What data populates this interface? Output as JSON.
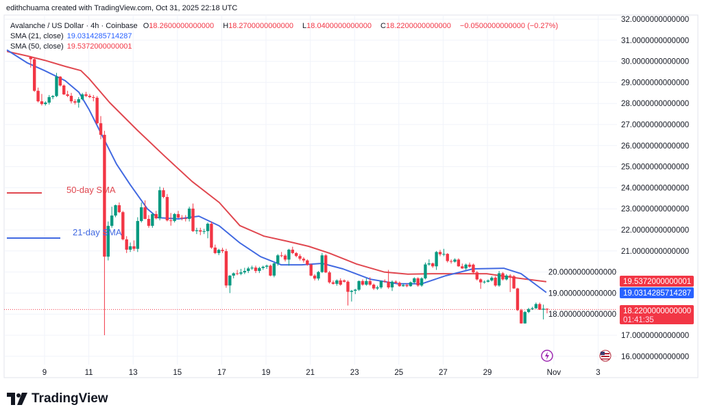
{
  "credit": "edithchuama created with TradingView.com, Oct 31, 2025 22:18 UTC",
  "legend": {
    "symbol": "Avalanche / US Dollar · 4h · Coinbase",
    "o_label": "O",
    "o": "18.2600000000000",
    "h_label": "H",
    "h": "18.2700000000000",
    "l_label": "L",
    "l": "18.0400000000000",
    "c_label": "C",
    "c": "18.2200000000000",
    "change": "−0.0500000000000 (−0.27%)",
    "sma21_label": "SMA (21, close)",
    "sma21_value": "19.0314285714287",
    "sma50_label": "SMA (50, close)",
    "sma50_value": "19.5372000000001"
  },
  "annotations": {
    "sma50": "50-day SMA",
    "sma21": "21-day SMA"
  },
  "price_labels": {
    "sma50": "19.5372000000001",
    "sma21": "19.0314285714287",
    "last": "18.2200000000000",
    "countdown": "01:41:35"
  },
  "colors": {
    "up": "#089981",
    "down": "#f23645",
    "sma21": "#4169e1",
    "sma50": "#e0474f",
    "sma21_label": "#2962ff"
  },
  "icons": [
    "lightning-event-icon",
    "us-flag-event-icon",
    "tradingview-logo-icon"
  ],
  "logo_text": "TradingView",
  "chart_data": {
    "type": "candlestick",
    "title": "Avalanche / US Dollar · 4h · Coinbase",
    "ylim": [
      16,
      32
    ],
    "y_ticks": [
      "16.0000000000000",
      "17.0000000000000",
      "18.0000000000000",
      "19.0000000000000",
      "20.0000000000000",
      "21.0000000000000",
      "22.0000000000000",
      "23.0000000000000",
      "24.0000000000000",
      "25.0000000000000",
      "26.0000000000000",
      "27.0000000000000",
      "28.0000000000000",
      "29.0000000000000",
      "30.0000000000000",
      "31.0000000000000",
      "32.0000000000000"
    ],
    "x_ticks": [
      {
        "day": 9,
        "label": "9"
      },
      {
        "day": 11,
        "label": "11"
      },
      {
        "day": 13,
        "label": "13"
      },
      {
        "day": 15,
        "label": "15"
      },
      {
        "day": 17,
        "label": "17"
      },
      {
        "day": 19,
        "label": "19"
      },
      {
        "day": 21,
        "label": "21"
      },
      {
        "day": 23,
        "label": "23"
      },
      {
        "day": 25,
        "label": "25"
      },
      {
        "day": 27,
        "label": "27"
      },
      {
        "day": 29,
        "label": "29"
      },
      {
        "day": 32,
        "label": "Nov"
      },
      {
        "day": 34,
        "label": "3"
      }
    ],
    "grid": true,
    "candles_ohlc": [
      [
        30.2,
        30.25,
        29.7,
        30.1
      ],
      [
        30.1,
        30.15,
        28.55,
        28.6
      ],
      [
        28.6,
        28.75,
        28.05,
        28.1
      ],
      [
        28.1,
        28.45,
        27.9,
        27.97
      ],
      [
        27.97,
        28.1,
        27.9,
        28.04
      ],
      [
        28.04,
        28.4,
        27.95,
        28.3
      ],
      [
        28.3,
        28.4,
        28.2,
        28.35
      ],
      [
        28.35,
        29.45,
        28.3,
        29.27
      ],
      [
        29.27,
        29.3,
        28.8,
        28.85
      ],
      [
        28.85,
        28.9,
        28.4,
        28.43
      ],
      [
        28.43,
        28.6,
        28.3,
        28.36
      ],
      [
        28.36,
        28.5,
        28.0,
        28.1
      ],
      [
        28.1,
        28.2,
        27.95,
        28.04
      ],
      [
        28.04,
        28.3,
        27.8,
        28.2
      ],
      [
        28.2,
        28.5,
        28.15,
        28.43
      ],
      [
        28.43,
        28.55,
        28.3,
        28.36
      ],
      [
        28.36,
        28.45,
        28.25,
        28.3
      ],
      [
        28.3,
        28.4,
        28.1,
        28.27
      ],
      [
        28.27,
        28.35,
        27.0,
        27.06
      ],
      [
        27.06,
        27.4,
        26.3,
        26.51
      ],
      [
        26.51,
        26.7,
        17.0,
        20.73
      ],
      [
        20.73,
        22.4,
        20.55,
        22.19
      ],
      [
        22.19,
        23.1,
        22.1,
        22.68
      ],
      [
        22.68,
        23.2,
        22.6,
        23.17
      ],
      [
        23.17,
        23.3,
        22.8,
        22.84
      ],
      [
        22.84,
        22.9,
        21.5,
        21.55
      ],
      [
        21.55,
        21.7,
        20.9,
        21.06
      ],
      [
        21.06,
        21.4,
        20.95,
        21.22
      ],
      [
        21.22,
        21.5,
        21.0,
        21.1
      ],
      [
        21.1,
        22.6,
        20.95,
        22.42
      ],
      [
        22.42,
        23.3,
        22.35,
        23.07
      ],
      [
        23.07,
        23.4,
        22.5,
        22.52
      ],
      [
        22.52,
        22.7,
        22.1,
        22.19
      ],
      [
        22.19,
        22.8,
        22.1,
        22.75
      ],
      [
        22.75,
        22.9,
        22.5,
        22.55
      ],
      [
        22.55,
        24.05,
        22.45,
        23.88
      ],
      [
        23.88,
        24.0,
        23.5,
        23.56
      ],
      [
        23.56,
        23.7,
        22.4,
        22.45
      ],
      [
        22.45,
        22.8,
        22.2,
        22.42
      ],
      [
        22.42,
        22.8,
        22.35,
        22.75
      ],
      [
        22.75,
        22.9,
        22.55,
        22.58
      ],
      [
        22.58,
        22.7,
        22.45,
        22.55
      ],
      [
        22.55,
        22.7,
        22.4,
        22.52
      ],
      [
        22.52,
        23.1,
        22.4,
        23.01
      ],
      [
        23.01,
        23.25,
        21.9,
        21.94
      ],
      [
        21.94,
        22.1,
        21.8,
        21.98
      ],
      [
        21.98,
        22.1,
        21.75,
        21.92
      ],
      [
        21.92,
        22.05,
        21.8,
        21.94
      ],
      [
        21.94,
        22.35,
        21.6,
        22.29
      ],
      [
        22.29,
        22.4,
        21.1,
        21.16
      ],
      [
        21.16,
        21.3,
        20.85,
        20.9
      ],
      [
        20.9,
        21.1,
        20.8,
        21.05
      ],
      [
        21.05,
        21.15,
        20.9,
        20.99
      ],
      [
        20.99,
        21.1,
        19.25,
        19.36
      ],
      [
        19.36,
        19.85,
        19.0,
        19.83
      ],
      [
        19.83,
        19.98,
        19.7,
        19.94
      ],
      [
        19.94,
        20.1,
        19.85,
        19.92
      ],
      [
        19.92,
        20.15,
        19.85,
        19.98
      ],
      [
        19.98,
        20.2,
        19.9,
        20.05
      ],
      [
        20.05,
        20.25,
        19.95,
        20.17
      ],
      [
        20.17,
        20.3,
        20.1,
        20.21
      ],
      [
        20.21,
        20.3,
        19.95,
        20.05
      ],
      [
        20.05,
        20.25,
        19.95,
        20.19
      ],
      [
        20.19,
        20.3,
        20.1,
        20.25
      ],
      [
        20.25,
        20.35,
        20.15,
        20.3
      ],
      [
        20.3,
        20.35,
        19.8,
        19.83
      ],
      [
        19.83,
        20.45,
        19.75,
        20.41
      ],
      [
        20.41,
        20.85,
        20.3,
        20.79
      ],
      [
        20.79,
        20.95,
        20.7,
        20.78
      ],
      [
        20.78,
        20.85,
        20.5,
        20.59
      ],
      [
        20.59,
        21.1,
        20.3,
        21.06
      ],
      [
        21.06,
        21.2,
        20.85,
        20.9
      ],
      [
        20.9,
        20.95,
        20.7,
        20.76
      ],
      [
        20.76,
        20.85,
        20.55,
        20.63
      ],
      [
        20.63,
        20.7,
        20.45,
        20.55
      ],
      [
        20.55,
        20.6,
        20.3,
        20.35
      ],
      [
        20.35,
        20.4,
        19.8,
        19.83
      ],
      [
        19.83,
        19.9,
        19.6,
        19.69
      ],
      [
        19.69,
        20.05,
        19.6,
        20.0
      ],
      [
        20.0,
        20.9,
        19.95,
        20.79
      ],
      [
        20.79,
        20.85,
        19.95,
        19.98
      ],
      [
        19.98,
        20.05,
        19.45,
        19.51
      ],
      [
        19.51,
        19.6,
        19.4,
        19.44
      ],
      [
        19.44,
        19.65,
        19.35,
        19.6
      ],
      [
        19.6,
        19.7,
        19.35,
        19.4
      ],
      [
        19.6,
        19.65,
        19.5,
        19.54
      ],
      [
        19.54,
        19.6,
        18.41,
        19.06
      ],
      [
        19.06,
        19.15,
        18.6,
        19.11
      ],
      [
        19.11,
        19.2,
        18.95,
        19.16
      ],
      [
        19.16,
        19.6,
        19.1,
        19.57
      ],
      [
        19.57,
        19.65,
        19.35,
        19.4
      ],
      [
        19.4,
        19.7,
        19.35,
        19.57
      ],
      [
        19.57,
        19.75,
        19.35,
        19.4
      ],
      [
        19.4,
        19.45,
        19.15,
        19.22
      ],
      [
        19.22,
        19.35,
        19.15,
        19.27
      ],
      [
        19.27,
        19.6,
        19.2,
        19.57
      ],
      [
        19.57,
        19.65,
        19.5,
        19.54
      ],
      [
        19.54,
        20.1,
        19.2,
        19.27
      ],
      [
        19.27,
        19.6,
        19.1,
        19.54
      ],
      [
        19.54,
        19.6,
        19.45,
        19.49
      ],
      [
        19.49,
        19.55,
        19.3,
        19.33
      ],
      [
        19.33,
        19.45,
        19.3,
        19.38
      ],
      [
        19.38,
        19.45,
        19.28,
        19.33
      ],
      [
        19.33,
        19.55,
        19.3,
        19.51
      ],
      [
        19.51,
        19.75,
        19.45,
        19.7
      ],
      [
        19.7,
        19.75,
        19.3,
        19.36
      ],
      [
        19.36,
        19.75,
        19.3,
        19.7
      ],
      [
        19.7,
        20.45,
        19.65,
        20.36
      ],
      [
        20.36,
        20.6,
        20.3,
        20.41
      ],
      [
        20.41,
        20.45,
        20.2,
        20.27
      ],
      [
        20.27,
        21.0,
        20.1,
        20.95
      ],
      [
        20.95,
        21.05,
        20.75,
        20.84
      ],
      [
        20.84,
        21.1,
        20.75,
        20.86
      ],
      [
        20.86,
        20.9,
        20.45,
        20.52
      ],
      [
        20.52,
        20.6,
        20.4,
        20.49
      ],
      [
        20.49,
        20.65,
        20.45,
        20.59
      ],
      [
        20.59,
        20.65,
        20.25,
        20.27
      ],
      [
        20.27,
        20.4,
        20.15,
        20.17
      ],
      [
        20.17,
        20.4,
        20.1,
        20.35
      ],
      [
        20.35,
        20.45,
        20.2,
        20.25
      ],
      [
        20.35,
        20.4,
        19.9,
        19.98
      ],
      [
        19.98,
        20.05,
        19.6,
        19.65
      ],
      [
        19.65,
        19.7,
        19.2,
        19.51
      ],
      [
        19.51,
        19.6,
        19.45,
        19.54
      ],
      [
        19.54,
        19.65,
        19.5,
        19.6
      ],
      [
        19.6,
        19.8,
        19.55,
        19.73
      ],
      [
        19.73,
        19.8,
        19.3,
        19.36
      ],
      [
        19.36,
        20.05,
        19.3,
        19.94
      ],
      [
        19.94,
        20.0,
        19.6,
        19.65
      ],
      [
        19.65,
        19.9,
        19.6,
        19.83
      ],
      [
        19.83,
        19.9,
        19.05,
        19.8
      ],
      [
        19.8,
        19.85,
        19.2,
        19.22
      ],
      [
        19.22,
        19.25,
        18.15,
        18.19
      ],
      [
        18.19,
        18.25,
        17.55,
        17.56
      ],
      [
        17.56,
        18.15,
        17.55,
        18.1
      ],
      [
        18.1,
        18.3,
        18.05,
        18.24
      ],
      [
        18.24,
        18.35,
        18.2,
        18.28
      ],
      [
        18.28,
        18.55,
        18.25,
        18.48
      ],
      [
        18.48,
        18.55,
        18.2,
        18.21
      ],
      [
        18.21,
        18.45,
        17.75,
        18.26
      ],
      [
        18.26,
        18.27,
        18.04,
        18.22
      ]
    ],
    "series": [
      {
        "name": "SMA (50, close)",
        "points_day_value": [
          [
            7.3,
            30.47
          ],
          [
            8.23,
            30.25
          ],
          [
            9.0,
            30.05
          ],
          [
            9.93,
            29.76
          ],
          [
            10.64,
            29.56
          ],
          [
            11.01,
            29.18
          ],
          [
            11.94,
            28.04
          ],
          [
            13.18,
            26.74
          ],
          [
            14.42,
            25.5
          ],
          [
            15.66,
            24.3
          ],
          [
            16.89,
            23.3
          ],
          [
            17.82,
            22.2
          ],
          [
            18.91,
            21.7
          ],
          [
            19.99,
            21.45
          ],
          [
            20.92,
            21.22
          ],
          [
            21.85,
            20.9
          ],
          [
            23.09,
            20.38
          ],
          [
            24.33,
            20.0
          ],
          [
            25.41,
            19.9
          ],
          [
            26.49,
            19.92
          ],
          [
            27.73,
            19.92
          ],
          [
            28.97,
            19.92
          ],
          [
            30.21,
            19.73
          ],
          [
            31.66,
            19.54
          ]
        ]
      },
      {
        "name": "SMA (21, close)",
        "points_day_value": [
          [
            7.3,
            30.54
          ],
          [
            8.23,
            29.92
          ],
          [
            9.0,
            29.56
          ],
          [
            9.93,
            29.08
          ],
          [
            10.55,
            28.53
          ],
          [
            11.01,
            27.71
          ],
          [
            11.63,
            26.42
          ],
          [
            12.25,
            25.12
          ],
          [
            12.87,
            24.14
          ],
          [
            13.64,
            23.0
          ],
          [
            14.11,
            22.58
          ],
          [
            15.04,
            22.52
          ],
          [
            15.97,
            22.65
          ],
          [
            16.89,
            22.19
          ],
          [
            17.82,
            21.38
          ],
          [
            18.75,
            20.73
          ],
          [
            19.68,
            20.34
          ],
          [
            20.61,
            20.34
          ],
          [
            21.54,
            20.41
          ],
          [
            22.47,
            20.15
          ],
          [
            23.71,
            19.66
          ],
          [
            24.94,
            19.44
          ],
          [
            26.03,
            19.44
          ],
          [
            27.11,
            19.82
          ],
          [
            28.35,
            20.15
          ],
          [
            29.74,
            20.18
          ],
          [
            30.52,
            19.92
          ],
          [
            31.66,
            19.03
          ]
        ]
      }
    ]
  }
}
